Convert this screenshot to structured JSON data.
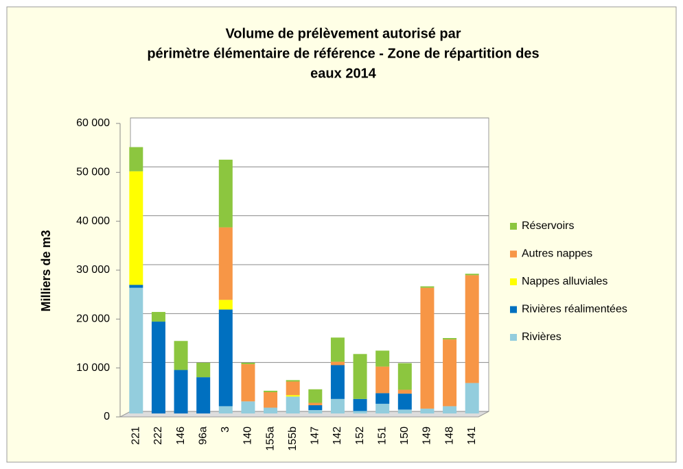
{
  "chart_data": {
    "type": "stacked_bar",
    "title": [
      "Volume de prélèvement autorisé par",
      "périmètre élémentaire de référence - Zone de répartition des",
      "eaux 2014"
    ],
    "y_label": "Milliers de m3",
    "categories": [
      "221",
      "222",
      "146",
      "96a",
      "3",
      "140",
      "155a",
      "155b",
      "147",
      "142",
      "152",
      "151",
      "150",
      "149",
      "148",
      "141"
    ],
    "series": [
      {
        "name": "Rivières",
        "color": "#93cddd",
        "values": [
          26000,
          0,
          0,
          0,
          1500,
          2500,
          1200,
          3500,
          700,
          3000,
          500,
          2000,
          800,
          1000,
          1500,
          6300
        ]
      },
      {
        "name": "Rivières réalimentées",
        "color": "#0070c0",
        "values": [
          600,
          19000,
          9000,
          7500,
          20000,
          0,
          0,
          0,
          1000,
          7000,
          2500,
          2200,
          3300,
          0,
          0,
          0
        ]
      },
      {
        "name": "Nappes alluviales",
        "color": "#ffff00",
        "values": [
          23500,
          0,
          0,
          0,
          2000,
          0,
          0,
          300,
          0,
          0,
          0,
          0,
          0,
          0,
          0,
          0
        ]
      },
      {
        "name": "Autres nappes",
        "color": "#f79646",
        "values": [
          0,
          0,
          0,
          0,
          15000,
          7700,
          3200,
          2800,
          500,
          700,
          0,
          5500,
          800,
          25000,
          13800,
          22300
        ]
      },
      {
        "name": "Réservoirs",
        "color": "#8cc63f",
        "values": [
          5000,
          2000,
          6000,
          3000,
          14000,
          300,
          300,
          300,
          2800,
          5000,
          9300,
          3300,
          5500,
          300,
          300,
          300
        ]
      }
    ],
    "ylim": [
      0,
      60000
    ],
    "yticks": [
      0,
      {
        "value": 10000,
        "label": "10 000"
      },
      {
        "value": 20000,
        "label": "20 000"
      },
      {
        "value": 30000,
        "label": "30 000"
      },
      {
        "value": 40000,
        "label": "40 000"
      },
      {
        "value": 50000,
        "label": "50 000"
      },
      {
        "value": 60000,
        "label": "60 000"
      }
    ],
    "grid": true,
    "legend": "right"
  }
}
